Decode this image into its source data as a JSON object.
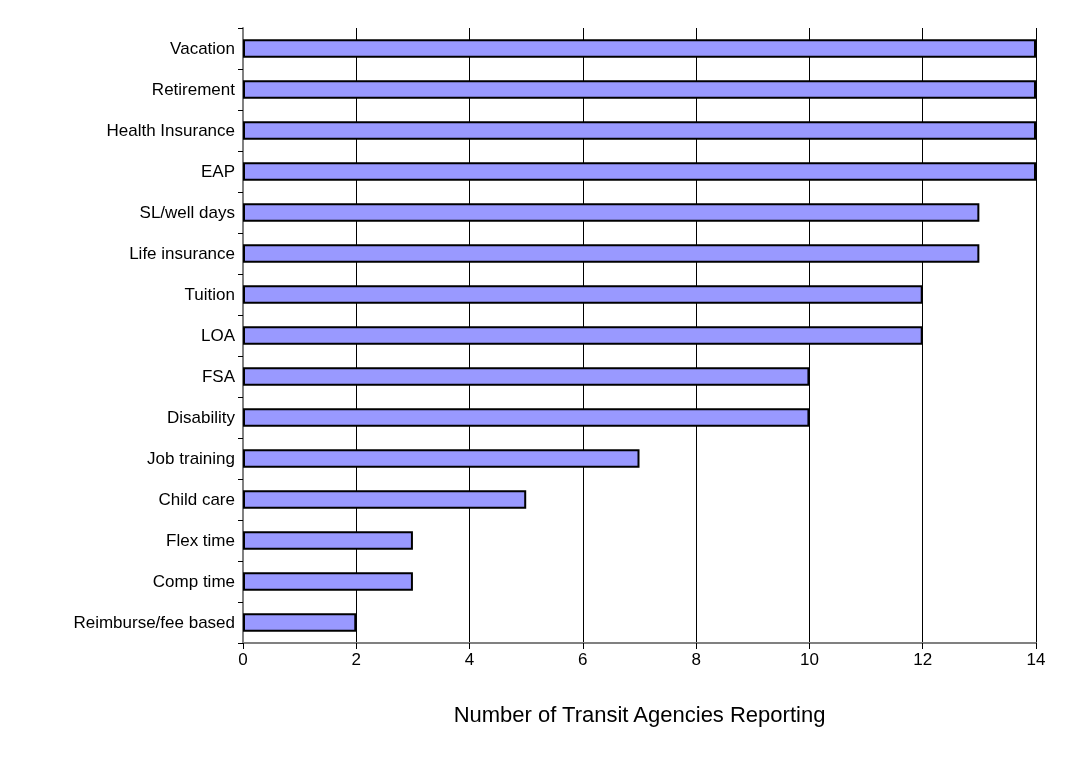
{
  "chart_data": {
    "type": "bar",
    "orientation": "horizontal",
    "xlabel": "Number of Transit Agencies Reporting",
    "categories": [
      "Vacation",
      "Retirement",
      "Health Insurance",
      "EAP",
      "SL/well days",
      "Life insurance",
      "Tuition",
      "LOA",
      "FSA",
      "Disability",
      "Job training",
      "Child care",
      "Flex time",
      "Comp time",
      "Reimburse/fee based"
    ],
    "values": [
      14,
      14,
      14,
      14,
      13,
      13,
      12,
      12,
      10,
      10,
      7,
      5,
      3,
      3,
      2
    ],
    "color": "#9999ff",
    "xlim": [
      0,
      14
    ],
    "xticks": [
      0,
      2,
      4,
      6,
      8,
      10,
      12,
      14
    ],
    "grid": "x"
  }
}
